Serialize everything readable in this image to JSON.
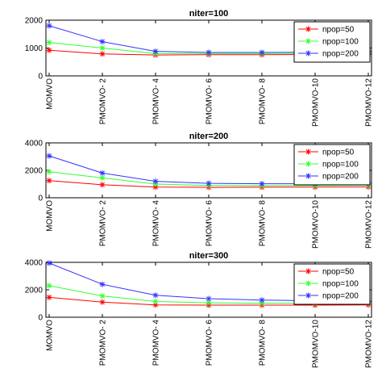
{
  "chart_data": [
    {
      "type": "line",
      "title": "niter=100",
      "categories": [
        "MOMVO",
        "PMOMVO- 2",
        "PMOMVO- 4",
        "PMOMVO- 6",
        "PMOMVO- 8",
        "PMOMVO-10",
        "PMOMVO-12"
      ],
      "ylim": [
        0,
        2000
      ],
      "yticks": [
        0,
        1000,
        2000
      ],
      "legend": "top-right",
      "grid": false,
      "series": [
        {
          "name": "npop=50",
          "color": "#ff0000",
          "values": [
            920,
            790,
            750,
            760,
            760,
            770,
            780
          ]
        },
        {
          "name": "npop=100",
          "color": "#33ff33",
          "values": [
            1200,
            1000,
            800,
            800,
            800,
            810,
            820
          ]
        },
        {
          "name": "npop=200",
          "color": "#3333ff",
          "values": [
            1800,
            1230,
            880,
            840,
            840,
            850,
            880
          ]
        }
      ]
    },
    {
      "type": "line",
      "title": "niter=200",
      "categories": [
        "MOMVO",
        "PMOMVO- 2",
        "PMOMVO- 4",
        "PMOMVO- 6",
        "PMOMVO- 8",
        "PMOMVO-10",
        "PMOMVO-12"
      ],
      "ylim": [
        0,
        4000
      ],
      "yticks": [
        0,
        2000,
        4000
      ],
      "legend": "top-right",
      "grid": false,
      "series": [
        {
          "name": "npop=50",
          "color": "#ff0000",
          "values": [
            1250,
            950,
            780,
            760,
            770,
            780,
            790
          ]
        },
        {
          "name": "npop=100",
          "color": "#33ff33",
          "values": [
            1900,
            1450,
            1000,
            900,
            880,
            890,
            920
          ]
        },
        {
          "name": "npop=200",
          "color": "#3333ff",
          "values": [
            3050,
            1800,
            1200,
            1050,
            1020,
            1020,
            1060
          ]
        }
      ]
    },
    {
      "type": "line",
      "title": "niter=300",
      "categories": [
        "MOMVO",
        "PMOMVO- 2",
        "PMOMVO- 4",
        "PMOMVO- 6",
        "PMOMVO- 8",
        "PMOMVO-10",
        "PMOMVO-12"
      ],
      "ylim": [
        0,
        4000
      ],
      "yticks": [
        0,
        2000,
        4000
      ],
      "legend": "top-right",
      "grid": false,
      "series": [
        {
          "name": "npop=50",
          "color": "#ff0000",
          "values": [
            1450,
            1100,
            900,
            880,
            880,
            880,
            900
          ]
        },
        {
          "name": "npop=100",
          "color": "#33ff33",
          "values": [
            2300,
            1550,
            1150,
            1050,
            1020,
            1020,
            1050
          ]
        },
        {
          "name": "npop=200",
          "color": "#3333ff",
          "values": [
            3950,
            2400,
            1600,
            1350,
            1250,
            1200,
            1150
          ]
        }
      ]
    }
  ]
}
